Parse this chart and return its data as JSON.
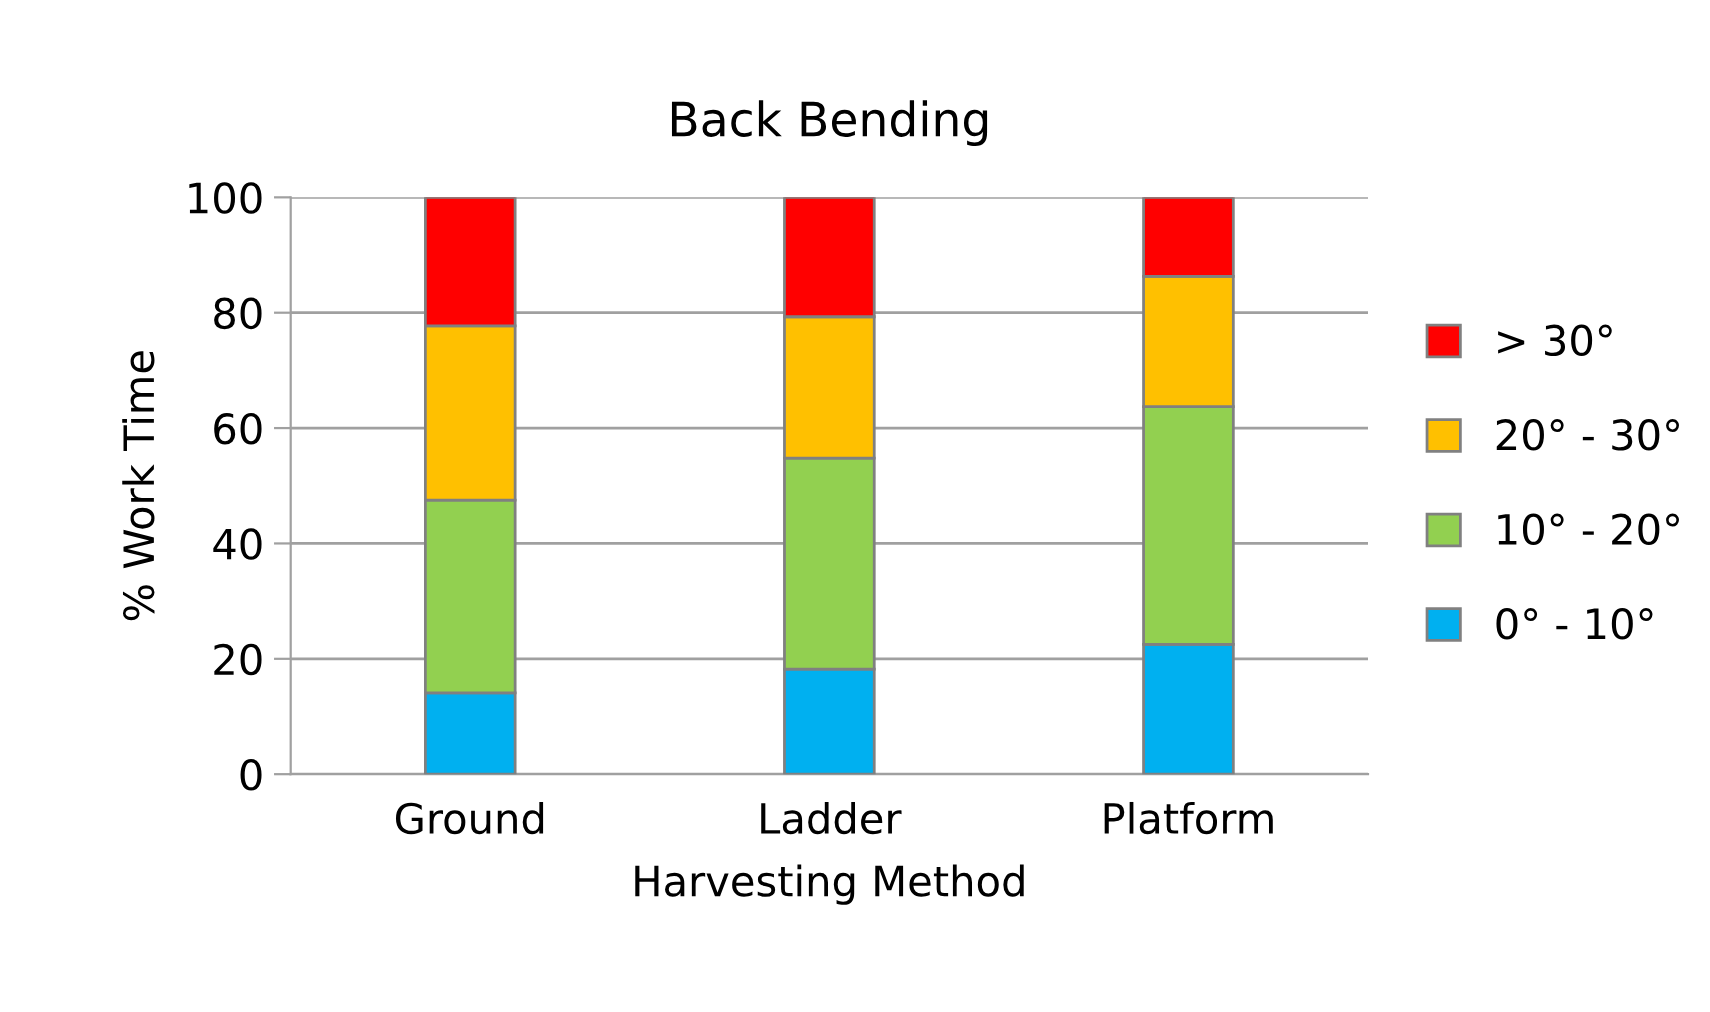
{
  "chart_data": {
    "type": "bar",
    "stacked": true,
    "title": "Back Bending",
    "xlabel": "Harvesting Method",
    "ylabel": "% Work Time",
    "categories": [
      "Ground",
      "Ladder",
      "Platform"
    ],
    "series": [
      {
        "name": "0° - 10°",
        "color": "#00b0f0",
        "values": [
          14.1,
          18.2,
          22.5
        ]
      },
      {
        "name": "10° - 20°",
        "color": "#92d050",
        "values": [
          33.4,
          36.6,
          41.2
        ]
      },
      {
        "name": "20° - 30°",
        "color": "#ffc000",
        "values": [
          30.2,
          24.5,
          22.6
        ]
      },
      {
        "name": "> 30°",
        "color": "#ff0000",
        "values": [
          22.3,
          20.7,
          13.7
        ]
      }
    ],
    "ylim": [
      0,
      100
    ],
    "yticks": [
      0,
      20,
      40,
      60,
      80,
      100
    ],
    "grid": "y",
    "legend": "right"
  }
}
